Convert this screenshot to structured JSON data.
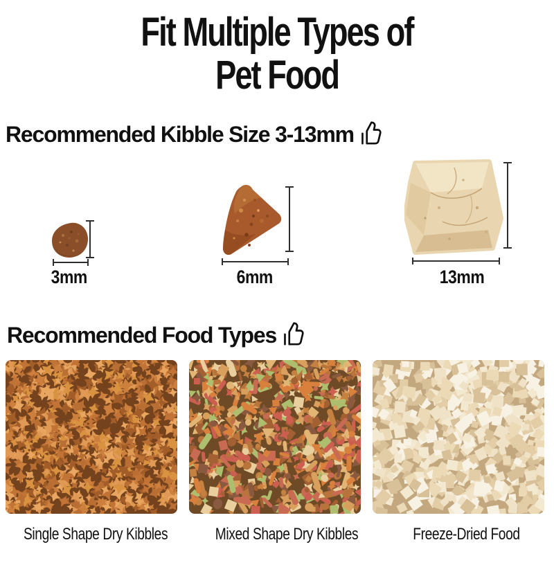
{
  "title": {
    "line1": "Fit Multiple Types of",
    "line2": "Pet Food"
  },
  "kibble_size_section": {
    "heading": "Recommended Kibble Size 3-13mm",
    "icon": "thumbs-up-icon",
    "items": [
      {
        "label": "3mm",
        "shape": "round-kibble"
      },
      {
        "label": "6mm",
        "shape": "triangle-kibble"
      },
      {
        "label": "13mm",
        "shape": "freeze-dried-cube"
      }
    ]
  },
  "food_types_section": {
    "heading": "Recommended Food Types",
    "icon": "thumbs-up-icon",
    "items": [
      {
        "label": "Single Shape Dry Kibbles"
      },
      {
        "label": "Mixed Shape Dry Kibbles"
      },
      {
        "label": "Freeze-Dried Food"
      }
    ]
  },
  "colors": {
    "text": "#111111",
    "background": "#ffffff",
    "measure_line": "#2e2e2e",
    "kibble_brown": "#8a4e28",
    "kibble_orange": "#a85a2c",
    "freeze_dried_tan": "#e9d6b0"
  },
  "textures": {
    "single": {
      "seed": 7,
      "bg": "#74421c",
      "count": 720,
      "size": 8,
      "shapes": [
        "star"
      ],
      "colors": [
        "#e09a55",
        "#cd7f3d",
        "#b96f33",
        "#a35d28",
        "#d9923f",
        "#c27336",
        "#e8a660"
      ]
    },
    "mixed": {
      "seed": 13,
      "bg": "#6f4a26",
      "count": 680,
      "size": 7,
      "shapes": [
        "pellet",
        "tri",
        "sq",
        "circ",
        "star"
      ],
      "colors": [
        "#d99f5c",
        "#c4813f",
        "#a36033",
        "#8a5a40",
        "#c96b52",
        "#cc5f50",
        "#adbf6f",
        "#e8cf9d",
        "#d9803d",
        "#b8743a",
        "#e2b575"
      ]
    },
    "freeze": {
      "seed": 21,
      "bg": "#c3a87f",
      "count": 540,
      "size": 8,
      "shapes": [
        "sq"
      ],
      "colors": [
        "#f3e8d0",
        "#ecd9b6",
        "#e2cda6",
        "#f8f2e4",
        "#d8c099",
        "#efe2c6"
      ]
    }
  }
}
